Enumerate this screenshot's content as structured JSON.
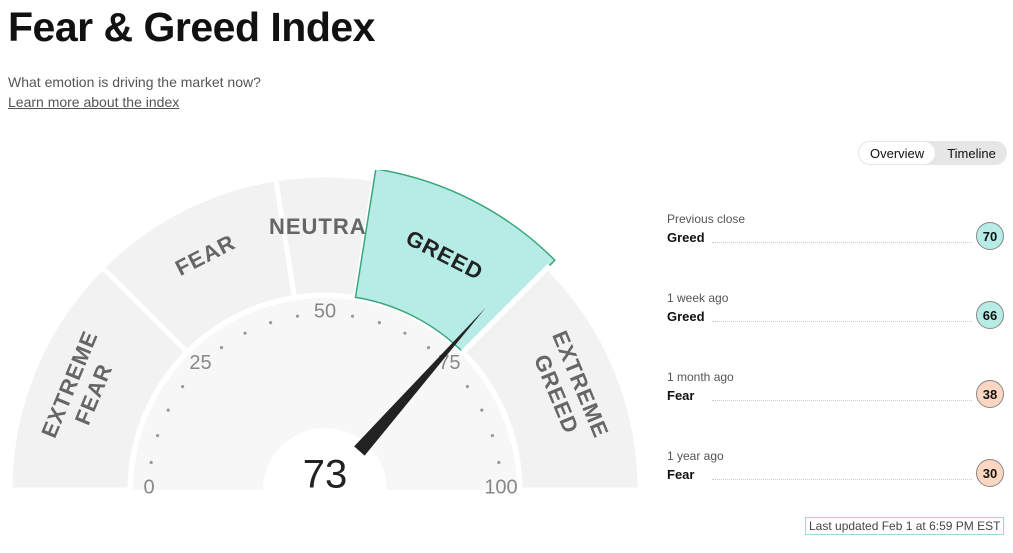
{
  "header": {
    "title": "Fear & Greed Index",
    "subtitle": "What emotion is driving the market now?",
    "link": "Learn more about the index"
  },
  "tabs": [
    "Overview",
    "Timeline"
  ],
  "gauge": {
    "value": 73,
    "min": 0,
    "max": 100,
    "ticks": [
      0,
      25,
      50,
      75,
      100
    ],
    "segments": [
      {
        "label": "EXTREME FEAR",
        "from": 0,
        "to": 25
      },
      {
        "label": "FEAR",
        "from": 25,
        "to": 45
      },
      {
        "label": "NEUTRAL",
        "from": 45,
        "to": 55
      },
      {
        "label": "GREED",
        "from": 55,
        "to": 75
      },
      {
        "label": "EXTREME GREED",
        "from": 75,
        "to": 100
      }
    ]
  },
  "history": [
    {
      "period": "Previous close",
      "rating": "Greed",
      "value": 70,
      "color": "#b6ebe6"
    },
    {
      "period": "1 week ago",
      "rating": "Greed",
      "value": 66,
      "color": "#b6ebe6"
    },
    {
      "period": "1 month ago",
      "rating": "Fear",
      "value": 38,
      "color": "#fcd6c0"
    },
    {
      "period": "1 year ago",
      "rating": "Fear",
      "value": 30,
      "color": "#fcd6c0"
    }
  ],
  "last_updated": "Last updated Feb 1 at 6:59 PM EST"
}
